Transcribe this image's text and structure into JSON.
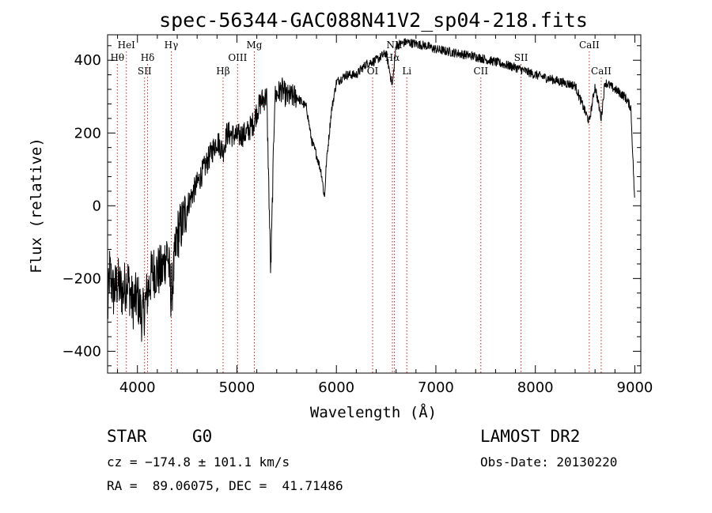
{
  "chart_data": {
    "type": "line",
    "title": "spec-56344-GAC088N41V2_sp04-218.fits",
    "xlabel": "Wavelength (Å)",
    "ylabel": "Flux (relative)",
    "xlim": [
      3700,
      9060
    ],
    "ylim": [
      -460,
      470
    ],
    "xticks": [
      4000,
      5000,
      6000,
      7000,
      8000,
      9000
    ],
    "yticks": [
      -400,
      -200,
      0,
      200,
      400
    ],
    "spectrum_anchor_points": [
      [
        3700,
        -300
      ],
      [
        3720,
        -180
      ],
      [
        3760,
        -240
      ],
      [
        3800,
        -210
      ],
      [
        3850,
        -240
      ],
      [
        3900,
        -200
      ],
      [
        3950,
        -270
      ],
      [
        4000,
        -250
      ],
      [
        4050,
        -310
      ],
      [
        4100,
        -240
      ],
      [
        4150,
        -180
      ],
      [
        4200,
        -180
      ],
      [
        4250,
        -180
      ],
      [
        4300,
        -120
      ],
      [
        4340,
        -250
      ],
      [
        4400,
        -80
      ],
      [
        4450,
        -50
      ],
      [
        4500,
        0
      ],
      [
        4600,
        60
      ],
      [
        4700,
        120
      ],
      [
        4800,
        180
      ],
      [
        4861,
        150
      ],
      [
        4900,
        200
      ],
      [
        5000,
        190
      ],
      [
        5100,
        200
      ],
      [
        5170,
        230
      ],
      [
        5200,
        260
      ],
      [
        5250,
        290
      ],
      [
        5300,
        300
      ],
      [
        5340,
        -190
      ],
      [
        5380,
        300
      ],
      [
        5450,
        320
      ],
      [
        5500,
        300
      ],
      [
        5600,
        300
      ],
      [
        5700,
        270
      ],
      [
        5750,
        180
      ],
      [
        5800,
        140
      ],
      [
        5850,
        90
      ],
      [
        5880,
        20
      ],
      [
        5900,
        120
      ],
      [
        5950,
        260
      ],
      [
        6000,
        340
      ],
      [
        6100,
        360
      ],
      [
        6200,
        360
      ],
      [
        6300,
        390
      ],
      [
        6400,
        400
      ],
      [
        6500,
        420
      ],
      [
        6563,
        330
      ],
      [
        6600,
        440
      ],
      [
        6700,
        450
      ],
      [
        6800,
        445
      ],
      [
        6900,
        440
      ],
      [
        7000,
        430
      ],
      [
        7200,
        420
      ],
      [
        7400,
        410
      ],
      [
        7600,
        395
      ],
      [
        7800,
        380
      ],
      [
        8000,
        360
      ],
      [
        8200,
        345
      ],
      [
        8400,
        330
      ],
      [
        8498,
        260
      ],
      [
        8542,
        230
      ],
      [
        8600,
        330
      ],
      [
        8662,
        240
      ],
      [
        8700,
        340
      ],
      [
        8800,
        320
      ],
      [
        8900,
        300
      ],
      [
        8960,
        270
      ],
      [
        9000,
        0
      ]
    ],
    "spectral_lines": [
      {
        "label": "Hθ",
        "wavelength": 3798,
        "row": 2
      },
      {
        "label": "HeI",
        "wavelength": 3889,
        "row": 1
      },
      {
        "label": "Hδ",
        "wavelength": 4102,
        "row": 2
      },
      {
        "label": "SII",
        "wavelength": 4072,
        "row": 3
      },
      {
        "label": "Hγ",
        "wavelength": 4340,
        "row": 1
      },
      {
        "label": "Hβ",
        "wavelength": 4861,
        "row": 3
      },
      {
        "label": "OIII",
        "wavelength": 5007,
        "row": 2
      },
      {
        "label": "Mg",
        "wavelength": 5175,
        "row": 1
      },
      {
        "label": "OI",
        "wavelength": 6364,
        "row": 3
      },
      {
        "label": "NII",
        "wavelength": 6583,
        "row": 1
      },
      {
        "label": "Hα",
        "wavelength": 6563,
        "row": 2
      },
      {
        "label": "Li",
        "wavelength": 6708,
        "row": 3
      },
      {
        "label": "CII",
        "wavelength": 7452,
        "row": 3
      },
      {
        "label": "SII",
        "wavelength": 7856,
        "row": 2
      },
      {
        "label": "CaII",
        "wavelength": 8542,
        "row": 1
      },
      {
        "label": "CaII",
        "wavelength": 8662,
        "row": 3
      }
    ]
  },
  "info": {
    "object_class": "STAR",
    "subclass": "G0",
    "survey": "LAMOST DR2",
    "cz_line": "cz = −174.8 ± 101.1 km/s",
    "obs_date_line": "Obs-Date: 20130220",
    "coords_line": "RA =  89.06075, DEC =  41.71486"
  }
}
